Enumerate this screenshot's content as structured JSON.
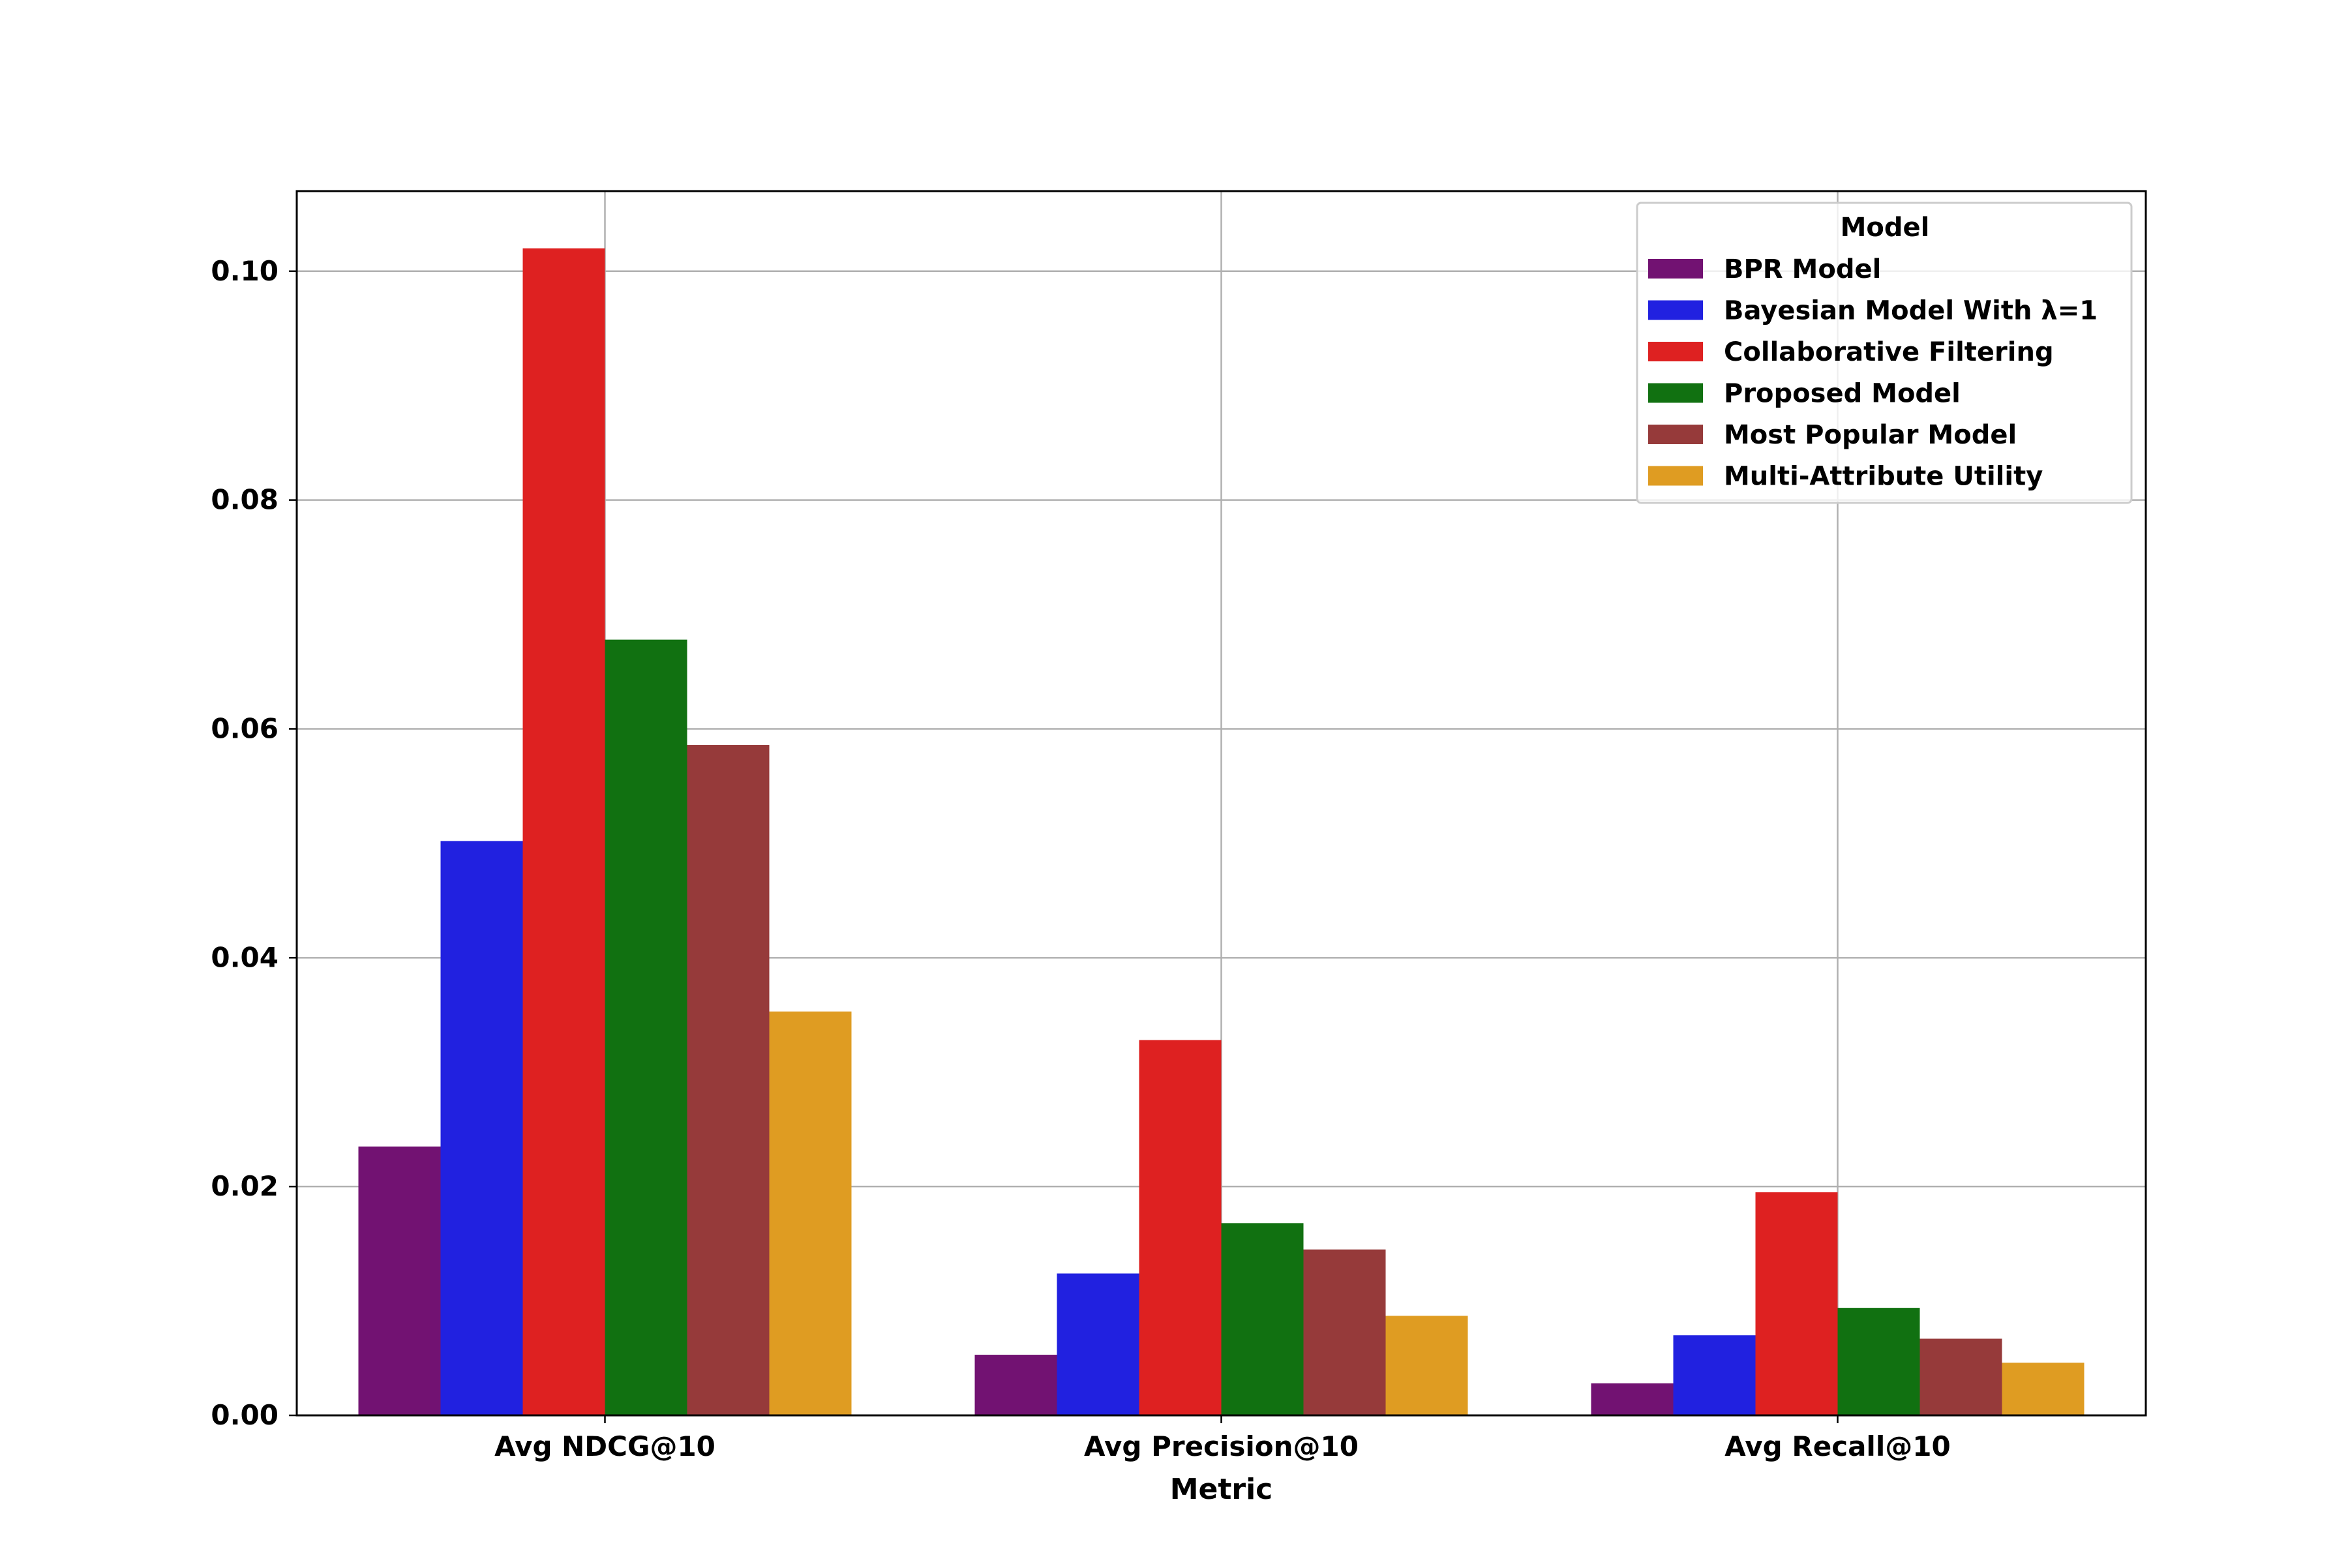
{
  "chart_data": {
    "type": "bar",
    "xlabel": "Metric",
    "ylabel": "",
    "ylim": [
      0,
      0.107
    ],
    "yticks": [
      "0.00",
      "0.02",
      "0.04",
      "0.06",
      "0.08",
      "0.10"
    ],
    "categories": [
      "Avg NDCG@10",
      "Avg Precision@10",
      "Avg Recall@10"
    ],
    "grid": true,
    "legend": {
      "title": "Model",
      "placement": "top-right"
    },
    "series": [
      {
        "name": "BPR Model",
        "color": "#721272",
        "values": [
          0.0235,
          0.0053,
          0.0028
        ]
      },
      {
        "name": "Bayesian Model With λ=1",
        "color": "#2121e0",
        "values": [
          0.0502,
          0.0124,
          0.007
        ]
      },
      {
        "name": "Collaborative Filtering",
        "color": "#de2121",
        "values": [
          0.102,
          0.0328,
          0.0195
        ]
      },
      {
        "name": "Proposed Model",
        "color": "#117111",
        "values": [
          0.0678,
          0.0168,
          0.0094
        ]
      },
      {
        "name": "Most Popular Model",
        "color": "#963a3a",
        "values": [
          0.0586,
          0.0145,
          0.0067
        ]
      },
      {
        "name": "Multi-Attribute Utility",
        "color": "#df9c22",
        "values": [
          0.0353,
          0.0087,
          0.0046
        ]
      }
    ]
  }
}
